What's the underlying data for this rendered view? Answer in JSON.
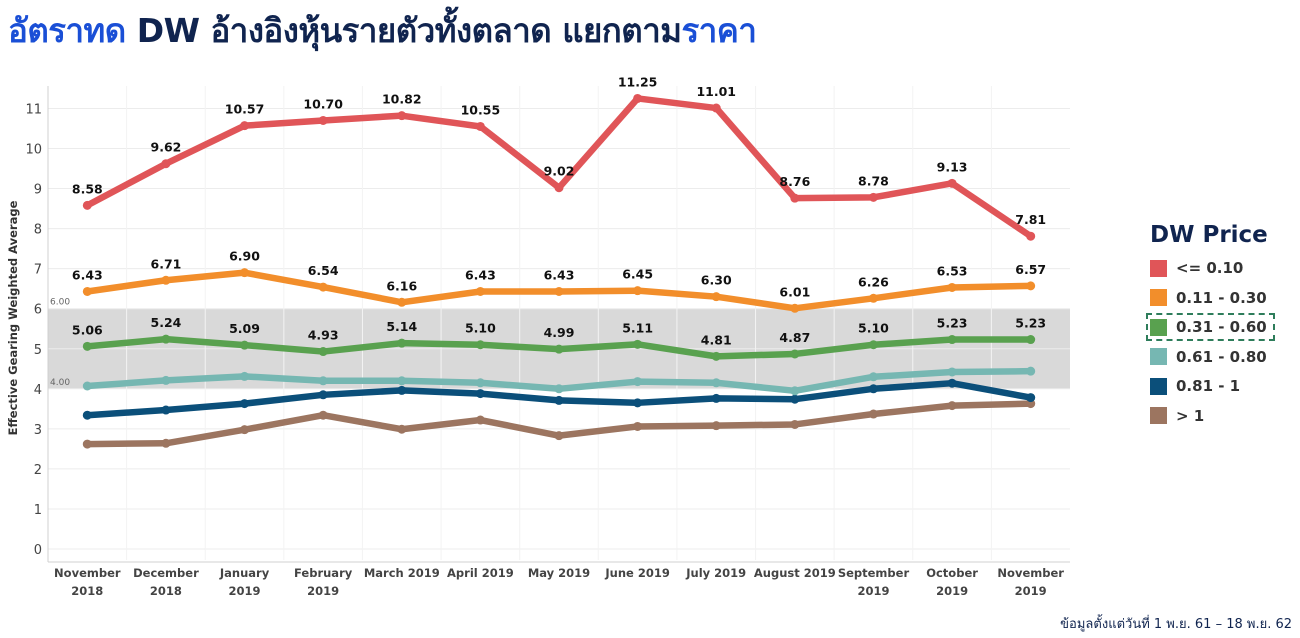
{
  "title": {
    "part1": "อัตราทด",
    "part2": " DW อ้างอิงหุ้นรายตัวทั้งตลาด แยกตาม",
    "part3": "ราคา"
  },
  "legend": {
    "title": "DW Price",
    "items": [
      {
        "label": "<= 0.10",
        "color": "#e05558"
      },
      {
        "label": "0.11 - 0.30",
        "color": "#f28e2b"
      },
      {
        "label": "0.31 - 0.60",
        "color": "#59a14f",
        "selected": true
      },
      {
        "label": "0.61 - 0.80",
        "color": "#76b7b2"
      },
      {
        "label": "0.81 - 1",
        "color": "#0b4f7a"
      },
      {
        "label": "> 1",
        "color": "#9c7560"
      }
    ]
  },
  "footnote": "ข้อมูลตั้งแต่วันที่ 1 พ.ย. 61 – 18 พ.ย. 62",
  "chart_data": {
    "type": "line",
    "ylabel": "Effective Gearing Weighted Average",
    "xlabel": "",
    "ylim": [
      -0.3,
      11.8
    ],
    "yticks": [
      0,
      1,
      2,
      3,
      4,
      5,
      6,
      7,
      8,
      9,
      10,
      11
    ],
    "band": {
      "from": 4.0,
      "to": 6.0,
      "label_low": "4.00",
      "label_high": "6.00",
      "color": "#d9d9d9"
    },
    "categories": [
      [
        "November",
        "2018"
      ],
      [
        "December",
        "2018"
      ],
      [
        "January",
        "2019"
      ],
      [
        "February",
        "2019"
      ],
      [
        "March 2019"
      ],
      [
        "April 2019"
      ],
      [
        "May 2019"
      ],
      [
        "June 2019"
      ],
      [
        "July 2019"
      ],
      [
        "August 2019"
      ],
      [
        "September",
        "2019"
      ],
      [
        "October",
        "2019"
      ],
      [
        "November",
        "2019"
      ]
    ],
    "series": [
      {
        "legend": "<= 0.10",
        "color": "#e05558",
        "labeled": true,
        "values": [
          8.58,
          9.62,
          10.57,
          10.7,
          10.82,
          10.55,
          9.02,
          11.25,
          11.01,
          8.76,
          8.78,
          9.13,
          7.81
        ]
      },
      {
        "legend": "0.11 - 0.30",
        "color": "#f28e2b",
        "labeled": true,
        "values": [
          6.43,
          6.71,
          6.9,
          6.54,
          6.16,
          6.43,
          6.43,
          6.45,
          6.3,
          6.01,
          6.26,
          6.53,
          6.57
        ]
      },
      {
        "legend": "0.31 - 0.60",
        "color": "#59a14f",
        "labeled": true,
        "values": [
          5.06,
          5.24,
          5.09,
          4.93,
          5.14,
          5.1,
          4.99,
          5.11,
          4.81,
          4.87,
          5.1,
          5.23,
          5.23
        ]
      },
      {
        "legend": "0.61 - 0.80",
        "color": "#76b7b2",
        "labeled": false,
        "values": [
          4.07,
          4.21,
          4.31,
          4.2,
          4.2,
          4.15,
          4.0,
          4.18,
          4.15,
          3.95,
          4.3,
          4.42,
          4.44
        ]
      },
      {
        "legend": "0.81 - 1",
        "color": "#0b4f7a",
        "labeled": false,
        "values": [
          3.34,
          3.47,
          3.63,
          3.85,
          3.96,
          3.88,
          3.71,
          3.65,
          3.76,
          3.74,
          4.0,
          4.14,
          3.78
        ]
      },
      {
        "legend": "> 1",
        "color": "#9c7560",
        "labeled": false,
        "values": [
          2.62,
          2.64,
          2.98,
          3.34,
          2.99,
          3.22,
          2.83,
          3.06,
          3.08,
          3.11,
          3.37,
          3.58,
          3.63
        ]
      }
    ]
  }
}
